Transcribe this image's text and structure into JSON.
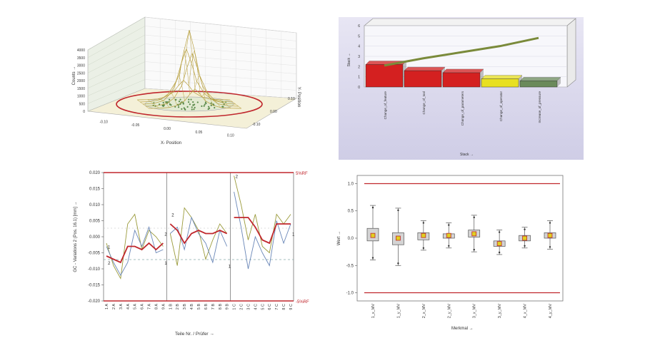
{
  "figure": {
    "colors": {
      "red": "#c0272d",
      "olive": "#9a9a3a",
      "green": "#5a8a4a",
      "blue": "#6a87b8",
      "yellow": "#e0d020",
      "box_fill": "#d4d4d4",
      "box_edge": "#555555"
    }
  },
  "chart_data": [
    {
      "type": "surface",
      "xlabel": "X- Position",
      "ylabel": "Y- Position",
      "zlabel": "Counts →",
      "xticks": [
        "-0.10",
        "-0.05",
        "0.00",
        "0.05",
        "0.10"
      ],
      "yticks": [
        "-0.10",
        "0.00",
        "0.10"
      ],
      "zticks": [
        "0",
        "500",
        "1000",
        "1500",
        "2000",
        "2500",
        "3000",
        "3500",
        "4000"
      ],
      "zlim": [
        0,
        4000
      ],
      "x": [
        -0.09,
        -0.07,
        -0.05,
        -0.035,
        -0.02,
        -0.01,
        0,
        0.01,
        0.02,
        0.035,
        0.05,
        0.07,
        0.09
      ],
      "z": [
        0,
        30,
        180,
        600,
        1500,
        2800,
        3850,
        2800,
        1500,
        600,
        180,
        30,
        0
      ]
    },
    {
      "type": "bar",
      "xlabel": "Stack →",
      "ylabel": "Stack →",
      "categories": [
        "Change_of_feature",
        "Change_of_tool",
        "Change_of_parameters",
        "Change_of_operator",
        "Increase_of_pressure"
      ],
      "values": [
        2.2,
        1.6,
        1.4,
        0.8,
        0.6
      ],
      "bar_colors": [
        "#d42020",
        "#d42020",
        "#d42020",
        "#e8e020",
        "#6a8a5a"
      ],
      "line_values": [
        2.1,
        2.8,
        3.4,
        4.0,
        4.8
      ],
      "yticks": [
        "0",
        "1",
        "2",
        "3",
        "4",
        "5",
        "6"
      ],
      "ylim": [
        0,
        6
      ]
    },
    {
      "type": "line",
      "xlabel": "Teile Nr. / Prüfer →",
      "ylabel": "GC - Variations 2 (Pos. 16.1) [mm] →",
      "yticks": [
        "0.020",
        "0.015",
        "0.010",
        "0.005",
        "0.000",
        "-0.005",
        "-0.010",
        "-0.015",
        "-0.020"
      ],
      "ylim": [
        -0.02,
        0.02
      ],
      "categories": [
        "1 A",
        "2 A",
        "3 A",
        "4 A",
        "5 A",
        "6 A",
        "7 A",
        "8 A",
        "9 A",
        "1 B",
        "2 B",
        "3 B",
        "4 B",
        "5 B",
        "6 B",
        "7 B",
        "8 B",
        "9 B",
        "1 C",
        "2 C",
        "3 C",
        "4 C",
        "5 C",
        "6 C",
        "7 C",
        "8 C",
        "9 C"
      ],
      "limit_labels": [
        "-5%RF",
        "5%RF"
      ],
      "limits": [
        -0.02,
        0.02
      ],
      "group_labels": [
        "1",
        "2",
        "1",
        "2",
        "2",
        "2",
        "1",
        "1"
      ],
      "series": [
        {
          "values": [
            -0.002,
            -0.009,
            -0.013,
            0.004,
            0.007,
            -0.004,
            0.002,
            0.0,
            -0.003,
            0.001,
            -0.009,
            0.009,
            0.006,
            0.002,
            -0.007,
            -0.001,
            0.004,
            0.001,
            0.019,
            0.01,
            -0.001,
            0.007,
            -0.003,
            -0.005,
            0.007,
            0.004,
            0.007
          ]
        },
        {
          "values": [
            -0.003,
            -0.008,
            -0.012,
            -0.008,
            0.002,
            -0.003,
            0.003,
            -0.005,
            -0.004,
            0.001,
            0.003,
            -0.004,
            0.006,
            0.001,
            -0.002,
            -0.008,
            0.002,
            -0.003,
            0.014,
            0.003,
            -0.01,
            0.0,
            -0.005,
            -0.009,
            0.005,
            -0.002,
            0.004
          ]
        },
        {
          "values": [
            -0.006,
            -0.007,
            -0.008,
            -0.003,
            -0.003,
            -0.004,
            -0.002,
            -0.004,
            -0.002,
            0.004,
            0.002,
            -0.002,
            0.001,
            0.002,
            0.001,
            0.001,
            0.002,
            0.001,
            0.006,
            0.006,
            0.006,
            0.003,
            -0.001,
            -0.002,
            0.004,
            0.004,
            0.004
          ]
        }
      ]
    },
    {
      "type": "box",
      "xlabel": "Merkmal →",
      "ylabel": "Wert →",
      "yticks": [
        "1.0",
        "0.5",
        "0.0",
        "-0.5",
        "-1.0"
      ],
      "ylim": [
        -1.15,
        1.15
      ],
      "limits": [
        -1.0,
        1.0
      ],
      "categories": [
        "1_x_MV",
        "1_y_MV",
        "2_x_MV",
        "2_y_MV",
        "3_x_MV",
        "3_y_MV",
        "4_x_MV",
        "4_y_MV"
      ],
      "boxes": [
        {
          "min": -0.4,
          "q1": -0.05,
          "median": 0.05,
          "q3": 0.18,
          "max": 0.6
        },
        {
          "min": -0.5,
          "q1": -0.12,
          "median": 0.0,
          "q3": 0.1,
          "max": 0.55
        },
        {
          "min": -0.22,
          "q1": -0.03,
          "median": 0.05,
          "q3": 0.1,
          "max": 0.32
        },
        {
          "min": -0.18,
          "q1": 0.0,
          "median": 0.05,
          "q3": 0.08,
          "max": 0.28
        },
        {
          "min": -0.25,
          "q1": 0.02,
          "median": 0.08,
          "q3": 0.15,
          "max": 0.42
        },
        {
          "min": -0.3,
          "q1": -0.15,
          "median": -0.1,
          "q3": -0.05,
          "max": 0.15
        },
        {
          "min": -0.18,
          "q1": -0.05,
          "median": 0.0,
          "q3": 0.05,
          "max": 0.2
        },
        {
          "min": -0.2,
          "q1": 0.0,
          "median": 0.05,
          "q3": 0.1,
          "max": 0.32
        }
      ],
      "grid": false
    }
  ]
}
